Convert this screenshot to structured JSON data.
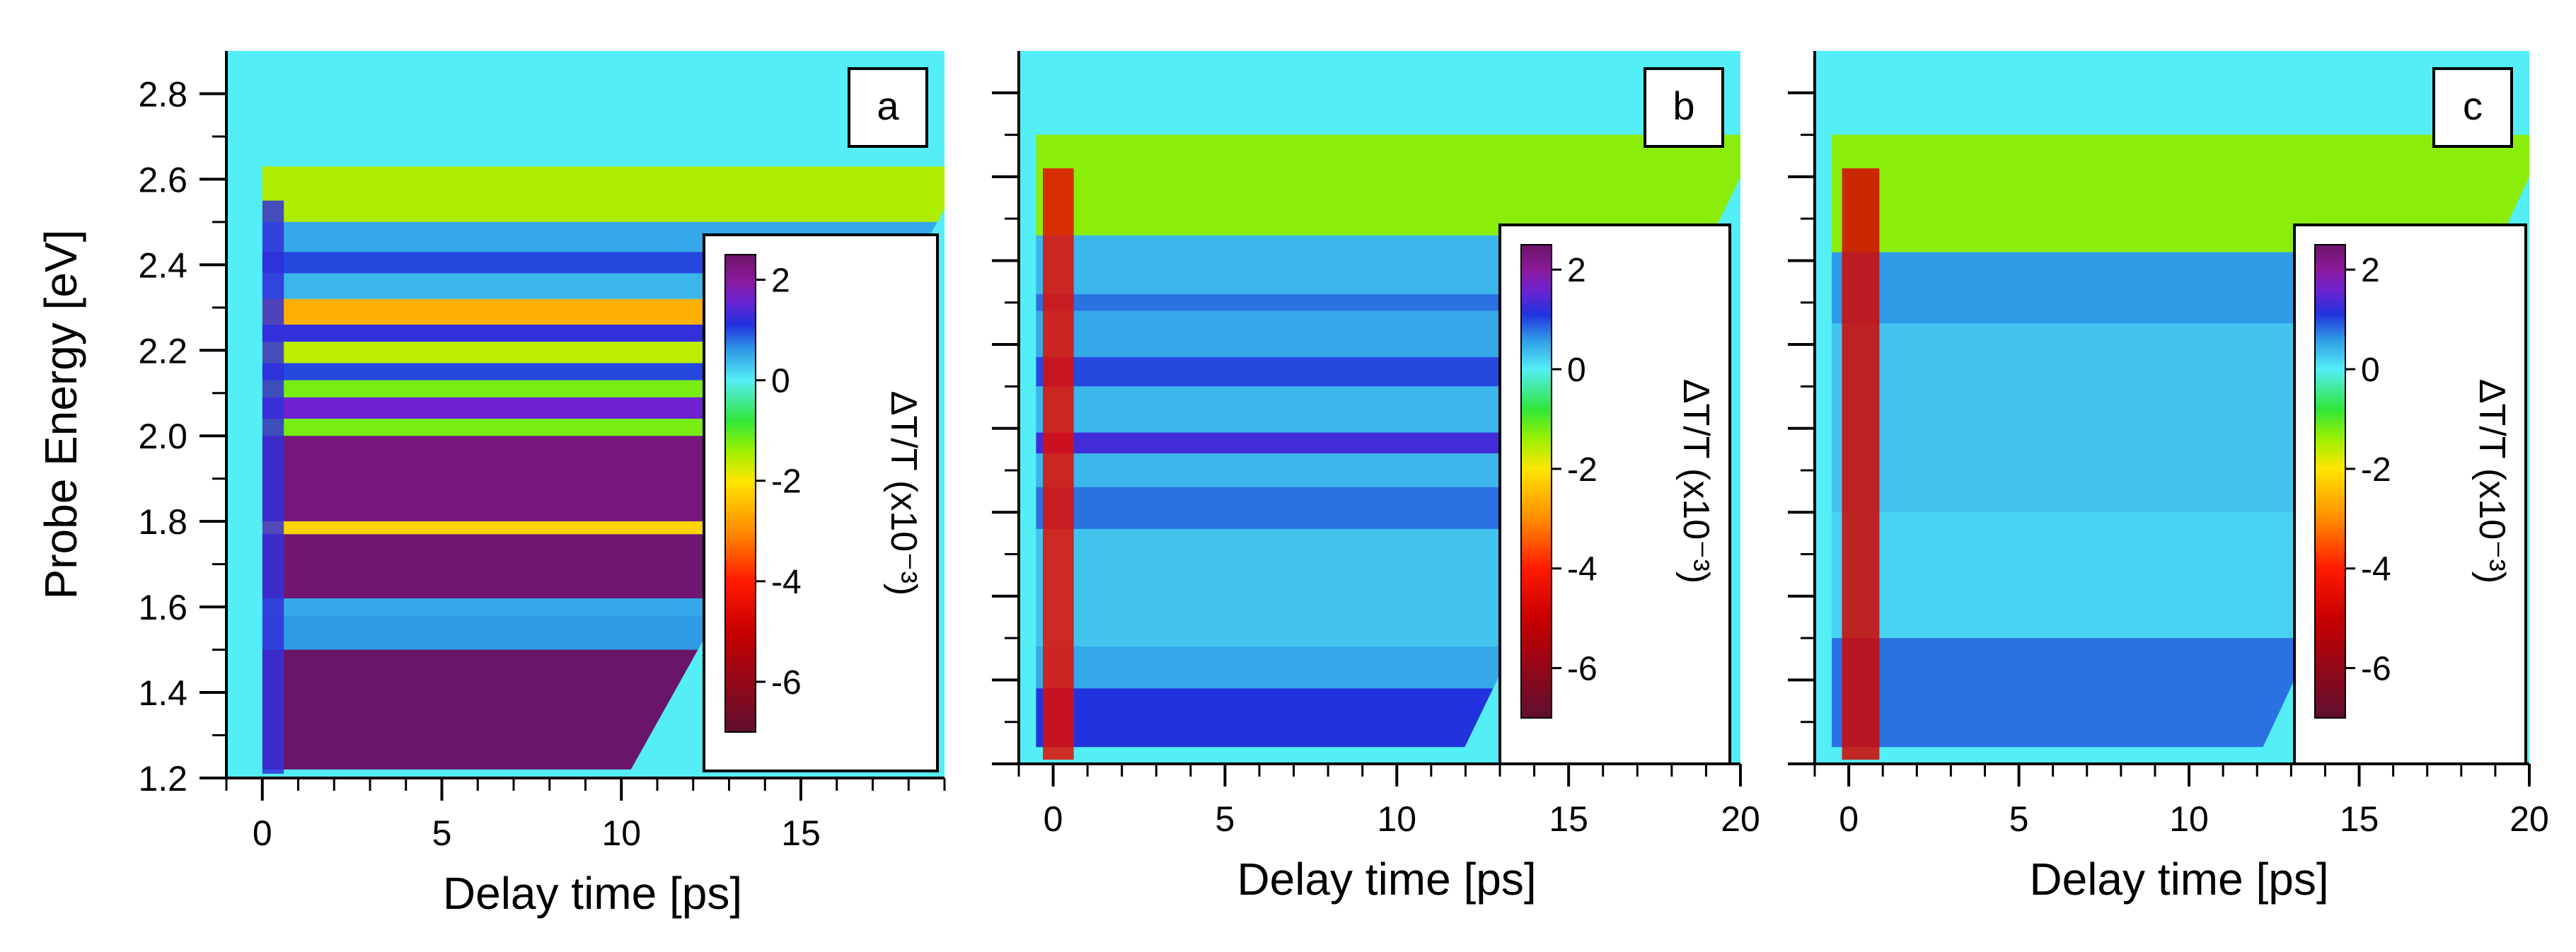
{
  "colors": {
    "background": "#54eef6",
    "colormap": [
      "#5e0f2f",
      "#c80000",
      "#ff1a00",
      "#ff8c00",
      "#ffe600",
      "#9cf000",
      "#2fe63a",
      "#54eef6",
      "#2f9ae6",
      "#2233dd",
      "#6f22d0",
      "#8b1a9a",
      "#6a1568"
    ]
  },
  "chart_data": [
    {
      "type": "heatmap",
      "panel_label": "a",
      "xlabel": "Delay time [ps]",
      "ylabel": "Probe Energy [eV]",
      "xlim": [
        -1,
        19
      ],
      "ylim": [
        1.2,
        2.9
      ],
      "x_ticks": [
        0,
        5,
        10,
        15
      ],
      "y_ticks": [
        1.2,
        1.4,
        1.6,
        1.8,
        2.0,
        2.2,
        2.4,
        2.6,
        2.8
      ],
      "y_tick_labels": [
        "1.2",
        "1.4",
        "1.6",
        "1.8",
        "2.0",
        "2.2",
        "2.4",
        "2.6",
        "2.8"
      ],
      "data_extent": {
        "t_start": 0.0,
        "t_end_at_low_energy": 10.2,
        "t_end_at_high_energy": 19.0,
        "energy_max": 2.65
      },
      "bands": [
        {
          "e0": 2.5,
          "e1": 2.63,
          "value": -1.5
        },
        {
          "e0": 2.43,
          "e1": 2.5,
          "value": 0.5
        },
        {
          "e0": 2.38,
          "e1": 2.43,
          "value": 1.0
        },
        {
          "e0": 2.32,
          "e1": 2.38,
          "value": 0.4
        },
        {
          "e0": 2.26,
          "e1": 2.32,
          "value": -2.6
        },
        {
          "e0": 2.22,
          "e1": 2.26,
          "value": 1.2
        },
        {
          "e0": 2.17,
          "e1": 2.22,
          "value": -1.6
        },
        {
          "e0": 2.13,
          "e1": 2.17,
          "value": 1.0
        },
        {
          "e0": 2.09,
          "e1": 2.13,
          "value": -1.2
        },
        {
          "e0": 2.04,
          "e1": 2.09,
          "value": 1.6
        },
        {
          "e0": 2.0,
          "e1": 2.04,
          "value": -1.2
        },
        {
          "e0": 1.8,
          "e1": 2.0,
          "value": 2.3
        },
        {
          "e0": 1.77,
          "e1": 1.8,
          "value": -2.2
        },
        {
          "e0": 1.62,
          "e1": 1.77,
          "value": 2.4
        },
        {
          "e0": 1.58,
          "e1": 1.62,
          "value": 0.5
        },
        {
          "e0": 1.5,
          "e1": 1.58,
          "value": 0.6
        },
        {
          "e0": 1.22,
          "e1": 1.5,
          "value": 2.5
        }
      ],
      "early_time_feature": {
        "t0": 0.0,
        "t1": 0.6,
        "value": 1.2
      },
      "colorbar": {
        "label": "ΔT/T (x10⁻³)",
        "min": -7,
        "max": 2.5,
        "ticks": [
          2,
          0,
          -2,
          -4,
          -6
        ],
        "tick_labels": [
          "2",
          "0",
          "-2",
          "-4",
          "-6"
        ]
      }
    },
    {
      "type": "heatmap",
      "panel_label": "b",
      "xlabel": "Delay time [ps]",
      "ylabel": "",
      "xlim": [
        -1,
        20
      ],
      "ylim": [
        1.2,
        2.9
      ],
      "x_ticks": [
        0,
        5,
        10,
        15,
        20
      ],
      "y_ticks": [
        1.2,
        1.4,
        1.6,
        1.8,
        2.0,
        2.2,
        2.4,
        2.6,
        2.8
      ],
      "y_tick_labels": [],
      "data_extent": {
        "t_start": -0.5,
        "t_end_at_low_energy": 11.8,
        "t_end_at_high_energy": 20.0,
        "energy_max": 2.72
      },
      "bands": [
        {
          "e0": 2.46,
          "e1": 2.7,
          "value": -1.3
        },
        {
          "e0": 2.32,
          "e1": 2.46,
          "value": 0.4
        },
        {
          "e0": 2.28,
          "e1": 2.32,
          "value": 0.8
        },
        {
          "e0": 2.17,
          "e1": 2.28,
          "value": 0.5
        },
        {
          "e0": 2.1,
          "e1": 2.17,
          "value": 1.0
        },
        {
          "e0": 1.99,
          "e1": 2.1,
          "value": 0.4
        },
        {
          "e0": 1.94,
          "e1": 1.99,
          "value": 1.3
        },
        {
          "e0": 1.86,
          "e1": 1.94,
          "value": 0.4
        },
        {
          "e0": 1.76,
          "e1": 1.86,
          "value": 0.8
        },
        {
          "e0": 1.48,
          "e1": 1.76,
          "value": 0.3
        },
        {
          "e0": 1.38,
          "e1": 1.48,
          "value": 0.5
        },
        {
          "e0": 1.24,
          "e1": 1.38,
          "value": 1.1
        }
      ],
      "early_time_feature": {
        "t0": -0.3,
        "t1": 0.6,
        "value": -4.5
      },
      "colorbar": {
        "label": "ΔT/T (x10⁻³)",
        "min": -7,
        "max": 2.5,
        "ticks": [
          2,
          0,
          -2,
          -4,
          -6
        ],
        "tick_labels": [
          "2",
          "0",
          "-2",
          "-4",
          "-6"
        ]
      }
    },
    {
      "type": "heatmap",
      "panel_label": "c",
      "xlabel": "Delay time [ps]",
      "ylabel": "",
      "xlim": [
        -1,
        20
      ],
      "ylim": [
        1.2,
        2.9
      ],
      "x_ticks": [
        0,
        5,
        10,
        15,
        20
      ],
      "y_ticks": [
        1.2,
        1.4,
        1.6,
        1.8,
        2.0,
        2.2,
        2.4,
        2.6,
        2.8
      ],
      "y_tick_labels": [],
      "data_extent": {
        "t_start": -0.5,
        "t_end_at_low_energy": 12.0,
        "t_end_at_high_energy": 20.0,
        "energy_max": 2.72
      },
      "bands": [
        {
          "e0": 2.42,
          "e1": 2.7,
          "value": -1.3
        },
        {
          "e0": 2.25,
          "e1": 2.42,
          "value": 0.6
        },
        {
          "e0": 1.8,
          "e1": 2.25,
          "value": 0.3
        },
        {
          "e0": 1.5,
          "e1": 1.8,
          "value": 0.2
        },
        {
          "e0": 1.24,
          "e1": 1.5,
          "value": 0.8
        }
      ],
      "early_time_feature": {
        "t0": -0.2,
        "t1": 0.9,
        "value": -4.8
      },
      "colorbar": {
        "label": "ΔT/T (x10⁻³)",
        "min": -7,
        "max": 2.5,
        "ticks": [
          2,
          0,
          -2,
          -4,
          -6
        ],
        "tick_labels": [
          "2",
          "0",
          "-2",
          "-4",
          "-6"
        ]
      }
    }
  ]
}
